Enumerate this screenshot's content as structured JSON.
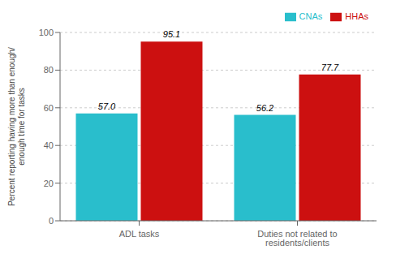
{
  "chart_data": {
    "type": "bar",
    "categories": [
      "ADL tasks",
      "Duties not related to residents/clients"
    ],
    "series": [
      {
        "name": "CNAs",
        "color": "#29BECC",
        "values": [
          57.0,
          56.2
        ],
        "value_labels": [
          "57.0",
          "56.2"
        ]
      },
      {
        "name": "HHAs",
        "color": "#CC1010",
        "values": [
          95.1,
          77.7
        ],
        "value_labels": [
          "95.1",
          "77.7"
        ]
      }
    ],
    "ylabel": "Percent reporting having more than enough/\nenough time for tasks",
    "ylim": [
      0,
      100
    ],
    "yticks": [
      0,
      20,
      40,
      60,
      80,
      100
    ],
    "grid": true,
    "legend": "upper right",
    "data_labels": true
  }
}
